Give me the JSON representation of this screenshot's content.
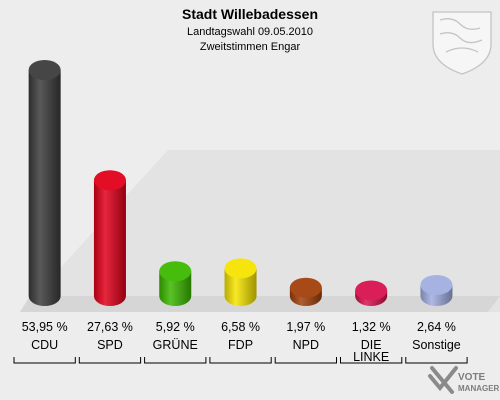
{
  "chart_data": {
    "type": "bar",
    "title": "Stadt Willebadessen",
    "subtitle_line1": "Landtagswahl 09.05.2010",
    "subtitle_line2": "Zweitstimmen Engar",
    "unit": "%",
    "ylim": [
      0,
      53.95
    ],
    "categories": [
      "CDU",
      "SPD",
      "GRÜNE",
      "FDP",
      "NPD",
      "DIE LINKE",
      "Sonstige"
    ],
    "category_lines": [
      [
        "CDU"
      ],
      [
        "SPD"
      ],
      [
        "GRÜNE"
      ],
      [
        "FDP"
      ],
      [
        "NPD"
      ],
      [
        "DIE",
        "LINKE"
      ],
      [
        "Sonstige"
      ]
    ],
    "values": [
      53.95,
      27.63,
      5.92,
      6.58,
      1.97,
      1.32,
      2.64
    ],
    "value_labels": [
      "53,95 %",
      "27,63 %",
      "5,92 %",
      "6,58 %",
      "1,97 %",
      "1,32 %",
      "2,64 %"
    ],
    "colors": [
      "#3c3c3c",
      "#e2001a",
      "#3cb800",
      "#f5e400",
      "#a2400c",
      "#d8124f",
      "#a0aee0"
    ]
  },
  "watermark": {
    "line1": "VOTE",
    "line2": "MANAGER"
  },
  "colors": {
    "background": "#ededed",
    "floor": "#d6d6d6",
    "shadow": "#e3e3e3"
  }
}
